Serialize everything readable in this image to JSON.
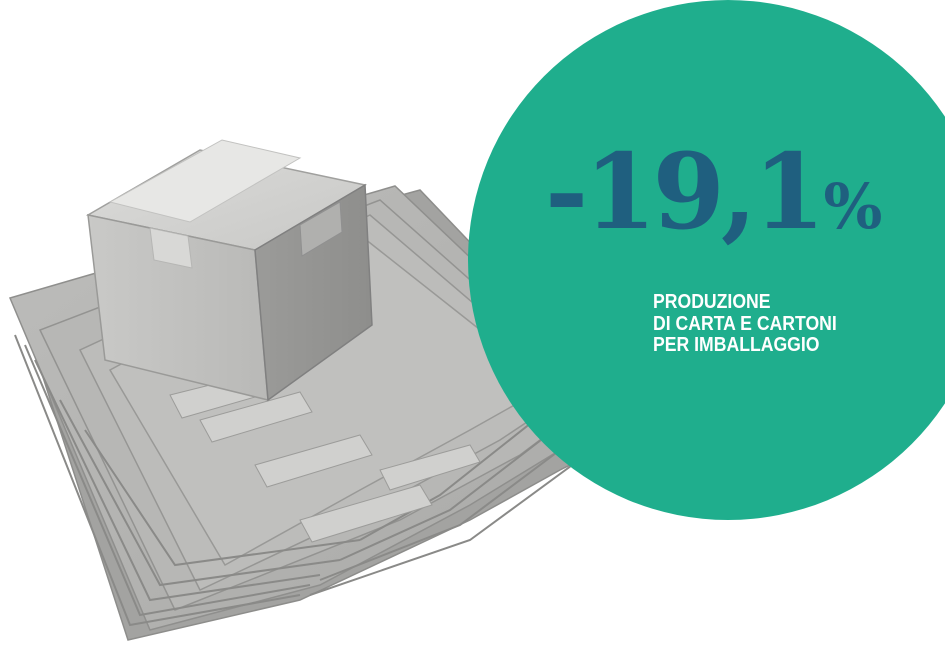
{
  "stat": {
    "number": "-19,1",
    "percent": "%",
    "caption_lines": [
      "PRODUZIONE",
      "DI CARTA E CARTONI",
      "PER IMBALLAGGIO"
    ]
  },
  "colors": {
    "circle": "#1fae8d",
    "value": "#1f5f7f",
    "caption": "#ffffff",
    "cardboard": "#b4b4b2"
  },
  "illustration": {
    "subject": "cardboard-box-on-stacked-cardboard-sheets"
  }
}
